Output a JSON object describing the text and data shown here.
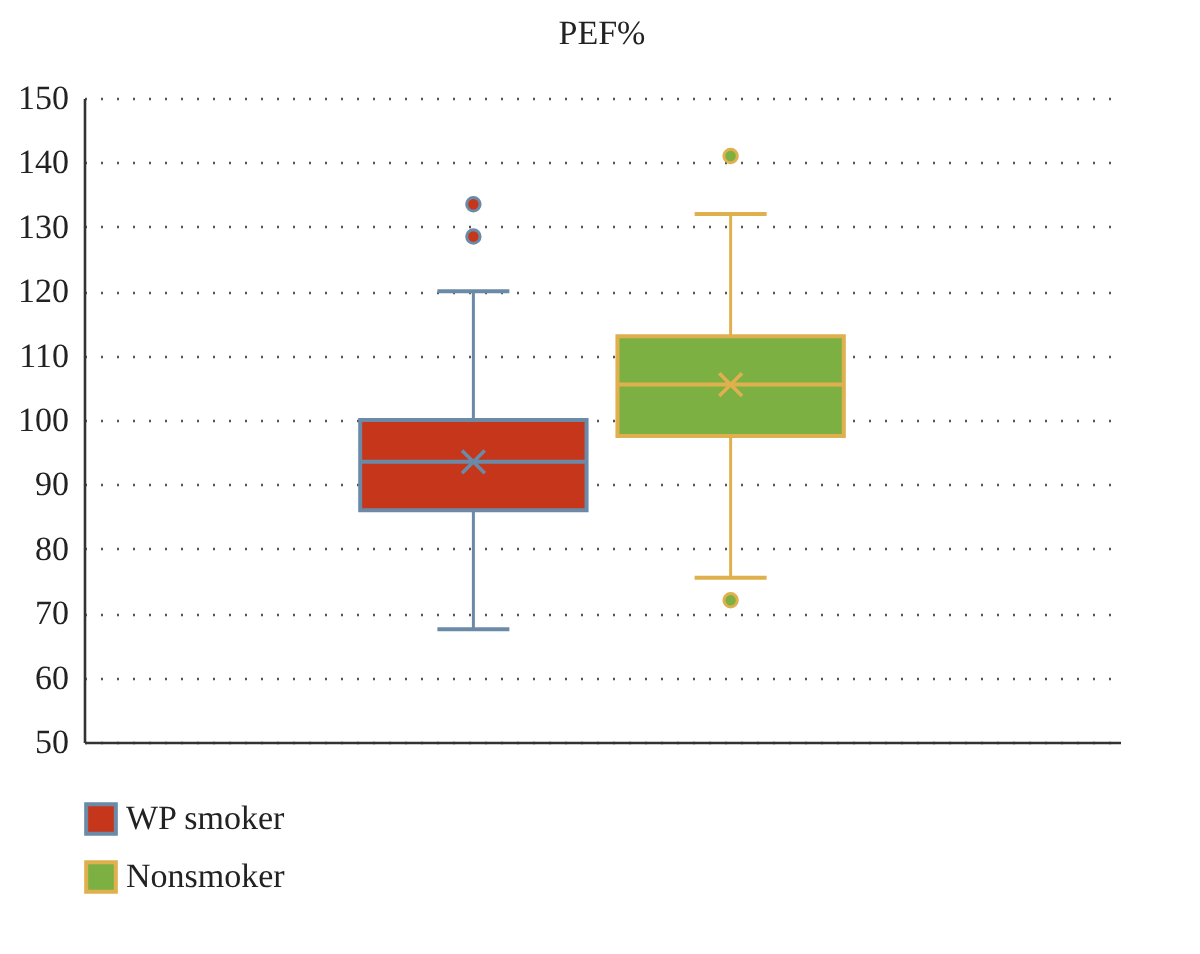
{
  "chart_data": {
    "type": "box",
    "title": "PEF%",
    "categories": [
      null
    ],
    "series": [
      {
        "name": "WP smoker",
        "color": "#c5361b",
        "boxes": [
          {
            "low": 67.5,
            "q1": 86,
            "median": 93.5,
            "q3": 100,
            "high": 120,
            "mean": 93.5,
            "outliers": [
              128.5,
              133.5
            ]
          }
        ]
      },
      {
        "name": "Nonsmoker",
        "color": "#7db043",
        "boxes": [
          {
            "low": 75.5,
            "q1": 97.5,
            "median": 105.5,
            "q3": 113,
            "high": 132,
            "mean": 105.5,
            "outliers": [
              72,
              141
            ]
          }
        ]
      }
    ],
    "ylim": [
      50,
      150
    ],
    "yticks": [
      50,
      60,
      70,
      80,
      90,
      100,
      110,
      120,
      130,
      140,
      150
    ],
    "grid": "y",
    "legend": "bottom left"
  }
}
